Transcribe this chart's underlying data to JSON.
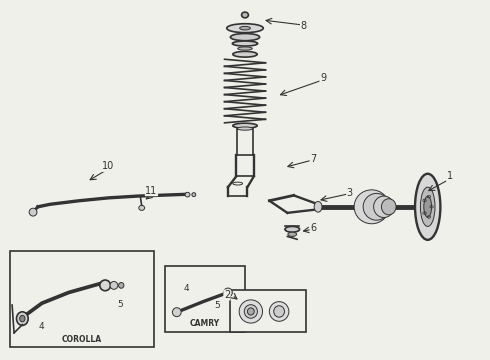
{
  "bg_color": "#f0f0eb",
  "line_color": "#333333",
  "fig_width": 4.9,
  "fig_height": 3.6,
  "dpi": 100
}
